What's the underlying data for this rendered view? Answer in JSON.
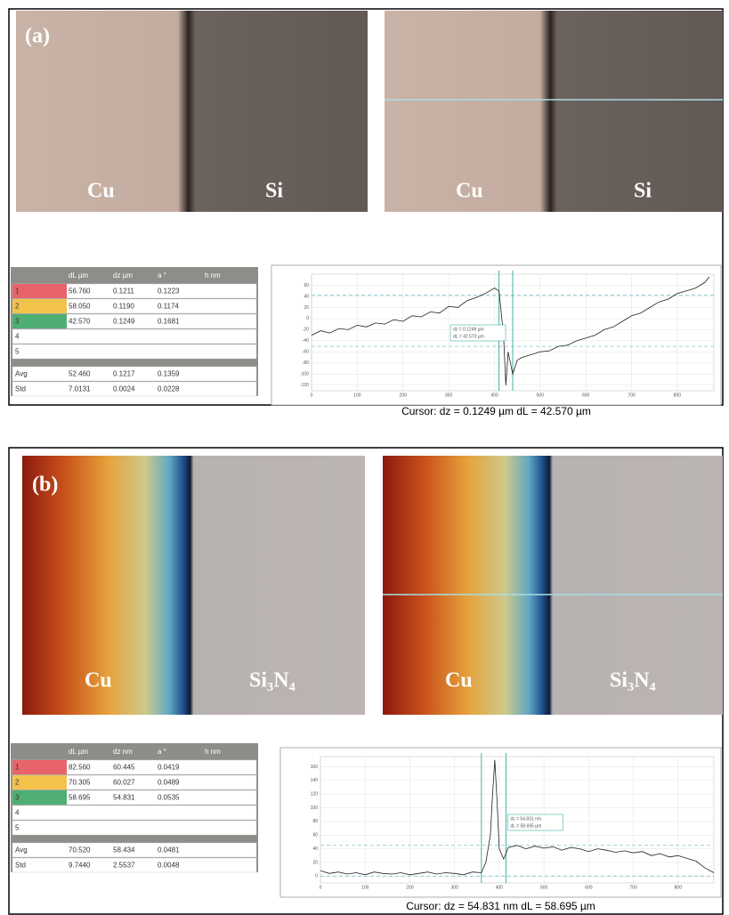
{
  "panels": [
    {
      "label": "(a)",
      "left_material": "Cu",
      "right_material": "Si",
      "table": {
        "columns": [
          "dL µm",
          "dz µm",
          "a °",
          "h nm"
        ],
        "rows": [
          {
            "id": "1",
            "cells": [
              "56.760",
              "0.1211",
              "0.1223"
            ]
          },
          {
            "id": "2",
            "cells": [
              "58.050",
              "0.1190",
              "0.1174"
            ]
          },
          {
            "id": "3",
            "cells": [
              "42.570",
              "0.1249",
              "0.1681"
            ]
          },
          {
            "id": "4",
            "cells": []
          },
          {
            "id": "5",
            "cells": []
          }
        ],
        "stats": [
          {
            "id": "Avg",
            "cells": [
              "52.460",
              "0.1217",
              "0.1359"
            ]
          },
          {
            "id": "Std",
            "cells": [
              "7.0131",
              "0.0024",
              "0.0228"
            ]
          }
        ]
      },
      "chart_data": {
        "type": "line",
        "x": [
          0,
          20,
          40,
          60,
          80,
          100,
          120,
          140,
          160,
          180,
          200,
          220,
          240,
          260,
          280,
          300,
          320,
          340,
          360,
          380,
          400,
          410,
          420,
          425,
          430,
          440,
          450,
          460,
          480,
          500,
          520,
          540,
          560,
          580,
          600,
          620,
          640,
          660,
          680,
          700,
          720,
          740,
          760,
          780,
          800,
          820,
          840,
          860,
          870
        ],
        "values": [
          -30,
          -22,
          -26,
          -18,
          -20,
          -12,
          -15,
          -8,
          -10,
          -2,
          -5,
          5,
          3,
          12,
          10,
          22,
          20,
          32,
          38,
          45,
          55,
          50,
          -30,
          -120,
          -60,
          -100,
          -75,
          -70,
          -65,
          -60,
          -58,
          -50,
          -48,
          -40,
          -35,
          -30,
          -20,
          -15,
          -5,
          5,
          10,
          20,
          30,
          35,
          45,
          50,
          55,
          65,
          75
        ],
        "xlim": [
          0,
          880
        ],
        "ylim": [
          -130,
          80
        ],
        "xticks": [
          0,
          100,
          200,
          300,
          400,
          500,
          600,
          700,
          800
        ],
        "yticks": [
          60,
          40,
          20,
          0,
          -20,
          -40,
          -60,
          -80,
          -100,
          -120
        ],
        "cursors": [
          410,
          440
        ],
        "ref_lines": [
          42,
          -50
        ],
        "readout": [
          "dz = 0.1249 µm",
          "dL = 42.570 µm"
        ],
        "caption": "Cursor: dz = 0.1249 µm  dL = 42.570 µm"
      }
    },
    {
      "label": "(b)",
      "left_material": "Cu",
      "right_material": "Si₃N₄",
      "table": {
        "columns": [
          "dL µm",
          "dz nm",
          "a °",
          "h nm"
        ],
        "rows": [
          {
            "id": "1",
            "cells": [
              "82.560",
              "60.445",
              "0.0419"
            ]
          },
          {
            "id": "2",
            "cells": [
              "70.305",
              "60.027",
              "0.0489"
            ]
          },
          {
            "id": "3",
            "cells": [
              "58.695",
              "54.831",
              "0.0535"
            ]
          },
          {
            "id": "4",
            "cells": []
          },
          {
            "id": "5",
            "cells": []
          }
        ],
        "stats": [
          {
            "id": "Avg",
            "cells": [
              "70.520",
              "58.434",
              "0.0481"
            ]
          },
          {
            "id": "Std",
            "cells": [
              "9.7440",
              "2.5537",
              "0.0048"
            ]
          }
        ]
      },
      "chart_data": {
        "type": "line",
        "x": [
          0,
          20,
          40,
          60,
          80,
          100,
          120,
          140,
          160,
          180,
          200,
          220,
          240,
          260,
          280,
          300,
          320,
          340,
          360,
          370,
          380,
          385,
          390,
          395,
          400,
          410,
          420,
          440,
          460,
          480,
          500,
          520,
          540,
          560,
          580,
          600,
          620,
          640,
          660,
          680,
          700,
          720,
          740,
          760,
          780,
          800,
          820,
          840,
          860,
          880
        ],
        "values": [
          8,
          4,
          6,
          3,
          5,
          2,
          6,
          4,
          3,
          5,
          2,
          4,
          6,
          3,
          5,
          4,
          2,
          6,
          5,
          20,
          60,
          120,
          170,
          110,
          40,
          25,
          42,
          45,
          40,
          44,
          41,
          43,
          38,
          42,
          40,
          36,
          40,
          38,
          35,
          37,
          34,
          36,
          30,
          33,
          28,
          30,
          26,
          22,
          12,
          5
        ],
        "xlim": [
          0,
          880
        ],
        "ylim": [
          -10,
          175
        ],
        "xticks": [
          0,
          100,
          200,
          300,
          400,
          500,
          600,
          700,
          800
        ],
        "yticks": [
          0,
          20,
          40,
          60,
          80,
          100,
          120,
          140,
          160
        ],
        "cursors": [
          360,
          415
        ],
        "ref_lines": [
          45,
          0
        ],
        "readout": [
          "dz = 54.831 nm",
          "dL = 58.695 µm"
        ],
        "caption": "Cursor: dz = 54.831 nm  dL = 58.695 µm"
      }
    }
  ]
}
